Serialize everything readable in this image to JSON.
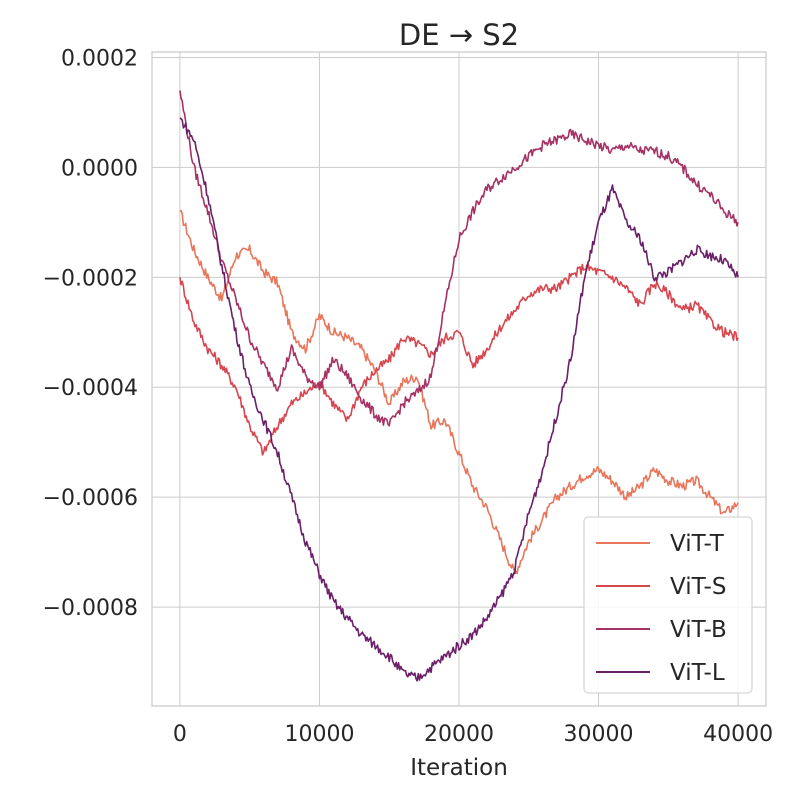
{
  "chart_data": {
    "type": "line",
    "title": "DE → S2",
    "xlabel": "Iteration",
    "ylabel": "",
    "xlim": [
      -2000,
      42000
    ],
    "ylim": [
      -0.00098,
      0.00021
    ],
    "grid": true,
    "legend_position": "bottom-right",
    "x_ticks": [
      0,
      10000,
      20000,
      30000,
      40000
    ],
    "x_tick_labels": [
      "0",
      "10000",
      "20000",
      "30000",
      "40000"
    ],
    "y_ticks": [
      0.0002,
      0.0,
      -0.0002,
      -0.0004,
      -0.0006,
      -0.0008
    ],
    "y_tick_labels": [
      "0.0002",
      "0.0000",
      "−0.0002",
      "−0.0004",
      "−0.0006",
      "−0.0008"
    ],
    "series": [
      {
        "name": "ViT-T",
        "color": "#e8765b",
        "x": [
          0,
          1000,
          2000,
          3000,
          4000,
          5000,
          6000,
          7000,
          8000,
          9000,
          10000,
          11000,
          12000,
          13000,
          14000,
          15000,
          16000,
          17000,
          18000,
          19000,
          20000,
          21000,
          22000,
          23000,
          24000,
          25000,
          26000,
          27000,
          28000,
          29000,
          30000,
          31000,
          32000,
          33000,
          34000,
          35000,
          36000,
          37000,
          38000,
          39000,
          40000
        ],
        "values": [
          -8e-05,
          -0.00015,
          -0.0002,
          -0.00024,
          -0.00016,
          -0.00015,
          -0.00019,
          -0.00021,
          -0.0003,
          -0.00033,
          -0.00027,
          -0.0003,
          -0.00031,
          -0.00033,
          -0.00037,
          -0.00043,
          -0.00039,
          -0.00038,
          -0.00047,
          -0.00046,
          -0.00052,
          -0.00058,
          -0.00062,
          -0.00068,
          -0.00074,
          -0.00068,
          -0.00064,
          -0.0006,
          -0.00058,
          -0.00056,
          -0.00055,
          -0.00057,
          -0.0006,
          -0.00058,
          -0.00055,
          -0.00057,
          -0.00058,
          -0.00057,
          -0.0006,
          -0.00063,
          -0.00061
        ]
      },
      {
        "name": "ViT-S",
        "color": "#d6464f",
        "x": [
          0,
          1000,
          2000,
          3000,
          4000,
          5000,
          6000,
          7000,
          8000,
          9000,
          10000,
          11000,
          12000,
          13000,
          14000,
          15000,
          16000,
          17000,
          18000,
          19000,
          20000,
          21000,
          22000,
          23000,
          24000,
          25000,
          26000,
          27000,
          28000,
          29000,
          30000,
          31000,
          32000,
          33000,
          34000,
          35000,
          36000,
          37000,
          38000,
          39000,
          40000
        ],
        "values": [
          -0.0002,
          -0.00028,
          -0.00033,
          -0.00036,
          -0.0004,
          -0.00047,
          -0.00052,
          -0.00047,
          -0.00043,
          -0.00041,
          -0.00039,
          -0.00043,
          -0.00046,
          -0.0004,
          -0.00037,
          -0.00035,
          -0.00031,
          -0.00032,
          -0.00034,
          -0.00031,
          -0.0003,
          -0.00036,
          -0.00033,
          -0.00029,
          -0.00026,
          -0.00023,
          -0.00022,
          -0.00022,
          -0.0002,
          -0.00018,
          -0.00019,
          -0.0002,
          -0.00022,
          -0.00025,
          -0.00021,
          -0.00023,
          -0.00026,
          -0.00025,
          -0.00028,
          -0.0003,
          -0.00031
        ]
      },
      {
        "name": "ViT-B",
        "color": "#a63263",
        "x": [
          0,
          1000,
          2000,
          3000,
          4000,
          5000,
          6000,
          7000,
          8000,
          9000,
          10000,
          11000,
          12000,
          13000,
          14000,
          15000,
          16000,
          17000,
          18000,
          19000,
          20000,
          21000,
          22000,
          23000,
          24000,
          25000,
          26000,
          27000,
          28000,
          29000,
          30000,
          31000,
          32000,
          33000,
          34000,
          35000,
          36000,
          37000,
          38000,
          39000,
          40000
        ],
        "values": [
          0.00014,
          0.0,
          -8e-05,
          -0.00017,
          -0.00024,
          -0.00031,
          -0.00036,
          -0.0004,
          -0.00033,
          -0.00038,
          -0.0004,
          -0.00035,
          -0.00038,
          -0.00042,
          -0.00045,
          -0.00047,
          -0.00043,
          -0.00041,
          -0.00038,
          -0.00025,
          -0.00013,
          -8e-05,
          -4e-05,
          -2e-05,
          0.0,
          2e-05,
          4e-05,
          5e-05,
          6e-05,
          5e-05,
          4e-05,
          3e-05,
          4e-05,
          3e-05,
          3e-05,
          2e-05,
          0.0,
          -3e-05,
          -5e-05,
          -8e-05,
          -0.0001
        ]
      },
      {
        "name": "ViT-L",
        "color": "#6a1f68",
        "x": [
          0,
          1000,
          2000,
          3000,
          4000,
          5000,
          6000,
          7000,
          8000,
          9000,
          10000,
          11000,
          12000,
          13000,
          14000,
          15000,
          16000,
          17000,
          18000,
          19000,
          20000,
          21000,
          22000,
          23000,
          24000,
          25000,
          26000,
          27000,
          28000,
          29000,
          30000,
          31000,
          32000,
          33000,
          34000,
          35000,
          36000,
          37000,
          38000,
          39000,
          40000
        ],
        "values": [
          9e-05,
          5e-05,
          -5e-05,
          -0.00018,
          -0.0003,
          -0.0004,
          -0.00046,
          -0.00052,
          -0.0006,
          -0.00068,
          -0.00074,
          -0.00079,
          -0.00082,
          -0.00085,
          -0.00087,
          -0.00089,
          -0.00092,
          -0.00093,
          -0.00091,
          -0.00089,
          -0.00087,
          -0.00085,
          -0.00082,
          -0.00078,
          -0.00073,
          -0.00063,
          -0.00055,
          -0.00045,
          -0.00035,
          -0.0002,
          -0.0001,
          -4e-05,
          -0.0001,
          -0.00013,
          -0.0002,
          -0.00019,
          -0.00017,
          -0.00015,
          -0.00016,
          -0.00017,
          -0.0002
        ]
      }
    ]
  }
}
